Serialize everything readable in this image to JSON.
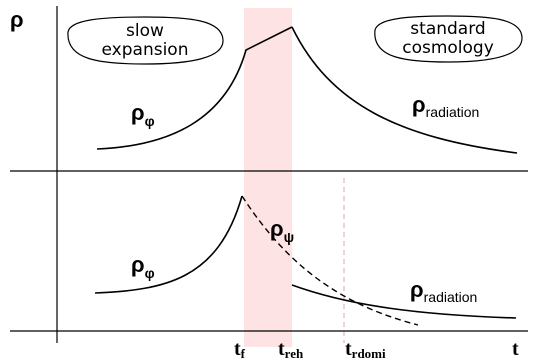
{
  "colors": {
    "band": "#fde3e3",
    "dash_marker": "#f0b0b0",
    "ink": "#000000"
  },
  "y_axis_symbol": "ρ",
  "x_axis_symbol": "t",
  "top_panel": {
    "bubble_left": {
      "line1": "slow",
      "line2": "expansion"
    },
    "bubble_right": {
      "line1": "standard",
      "line2": "cosmology"
    },
    "curve_label_left": {
      "base": "ρ",
      "sub": "φ"
    },
    "curve_label_right": {
      "base": "ρ",
      "sub": "radiation"
    }
  },
  "bottom_panel": {
    "curve_label_left": {
      "base": "ρ",
      "sub": "φ"
    },
    "curve_label_dashed": {
      "base": "ρ",
      "sub": "ψ"
    },
    "curve_label_right": {
      "base": "ρ",
      "sub": "radiation"
    }
  },
  "time_markers": [
    {
      "base": "t",
      "sub": "f"
    },
    {
      "base": "t",
      "sub": "reh"
    },
    {
      "base": "t",
      "sub": "rdomi"
    }
  ]
}
